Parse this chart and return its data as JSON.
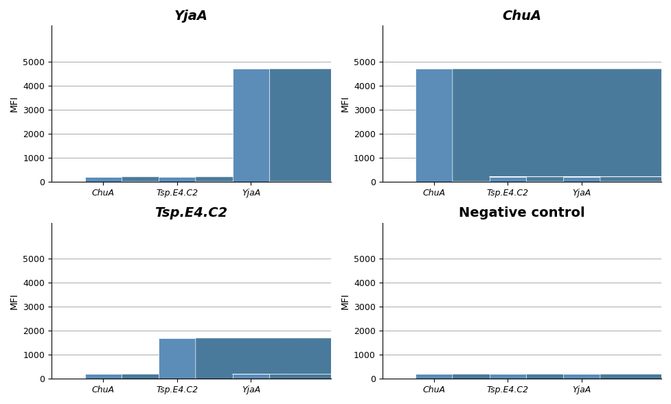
{
  "subplots": [
    {
      "title": "YjaA",
      "title_style": "italic",
      "categories": [
        "ChuA",
        "Tsp.E4.C2",
        "YjaA"
      ],
      "values": [
        200,
        200,
        4700
      ],
      "ylim": [
        0,
        6000
      ],
      "yticks": [
        0,
        1000,
        2000,
        3000,
        4000,
        5000
      ],
      "xlabel_style": "italic"
    },
    {
      "title": "ChuA",
      "title_style": "italic",
      "categories": [
        "ChuA",
        "Tsp.E4.C2",
        "YjaA"
      ],
      "values": [
        4700,
        200,
        200
      ],
      "ylim": [
        0,
        6000
      ],
      "yticks": [
        0,
        1000,
        2000,
        3000,
        4000,
        5000
      ],
      "xlabel_style": "italic"
    },
    {
      "title": "Tsp.E4.C2",
      "title_style": "italic",
      "categories": [
        "ChuA",
        "Tsp.E4.C2",
        "YjaA"
      ],
      "values": [
        200,
        1700,
        200
      ],
      "ylim": [
        0,
        6000
      ],
      "yticks": [
        0,
        1000,
        2000,
        3000,
        4000,
        5000
      ],
      "xlabel_style": "italic"
    },
    {
      "title": "Negative control",
      "title_style": "bold",
      "categories": [
        "ChuA",
        "Tsp.E4.C2",
        "YjaA"
      ],
      "values": [
        200,
        200,
        200
      ],
      "ylim": [
        0,
        6000
      ],
      "yticks": [
        0,
        1000,
        2000,
        3000,
        4000,
        5000
      ],
      "xlabel_style": "italic"
    }
  ],
  "bar_color": "#5b8db8",
  "bar_color_top": "#7aafd4",
  "bar_color_side": "#4a7a9b",
  "bar_depth_color": "#3d6b8a",
  "ylabel": "MFI",
  "background_color": "#ffffff",
  "grid_color": "#aaaaaa",
  "bar_width": 0.5,
  "bar_depth": 0.15,
  "title_fontsize": 14,
  "axis_fontsize": 10,
  "tick_fontsize": 9
}
